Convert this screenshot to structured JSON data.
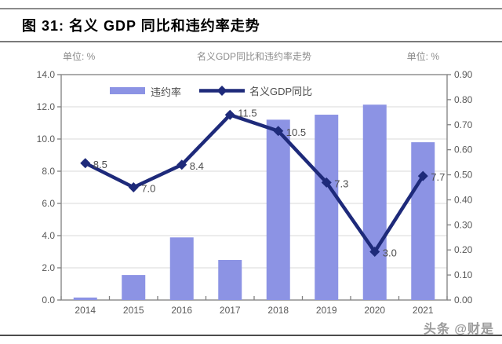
{
  "header": {
    "title": "图 31:  名义 GDP 同比和违约率走势"
  },
  "watermark": "头条 @财是",
  "chart_data": {
    "type": "bar+line",
    "title": "名义GDP同比和违约率走势",
    "unit_left": "单位: %",
    "unit_right": "单位: %",
    "categories": [
      "2014",
      "2015",
      "2016",
      "2017",
      "2018",
      "2019",
      "2020",
      "2021"
    ],
    "series": [
      {
        "name": "违约率",
        "type": "bar",
        "axis": "right",
        "values": [
          0.01,
          0.1,
          0.25,
          0.16,
          0.72,
          0.74,
          0.78,
          0.63
        ],
        "color": "#8c93e4"
      },
      {
        "name": "名义GDP同比",
        "type": "line",
        "axis": "left",
        "values": [
          8.5,
          7.0,
          8.4,
          11.5,
          10.5,
          7.3,
          3.0,
          7.7
        ],
        "labels": [
          "8.5",
          "7.0",
          "8.4",
          "11.5",
          "10.5",
          "7.3",
          "3.0",
          "7.7"
        ],
        "color": "#1e2a7a"
      }
    ],
    "left_axis": {
      "min": 0,
      "max": 14,
      "step": 2,
      "tick_labels": [
        "0.0",
        "2.0",
        "4.0",
        "6.0",
        "8.0",
        "10.0",
        "12.0",
        "14.0"
      ]
    },
    "right_axis": {
      "min": 0,
      "max": 0.9,
      "step": 0.1,
      "tick_labels": [
        "0.00",
        "0.10",
        "0.20",
        "0.30",
        "0.40",
        "0.50",
        "0.60",
        "0.70",
        "0.80",
        "0.90"
      ]
    },
    "grid": true,
    "legend_position": "top-left-inside"
  },
  "colors": {
    "bar": "#8c93e4",
    "line": "#1e2a7a",
    "grid": "#d9d9d9",
    "frame": "#808080",
    "tick_text": "#595959",
    "inner_title": "#8c8c8c",
    "data_label": "#4d4d4d"
  }
}
